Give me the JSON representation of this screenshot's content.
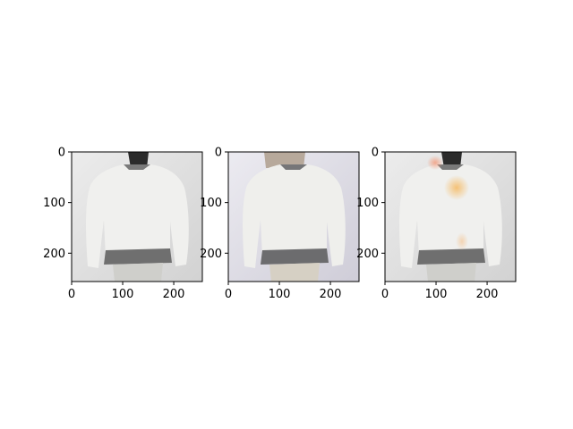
{
  "figure": {
    "background": "#ffffff",
    "panel_count": 3
  },
  "chart_data": [
    {
      "type": "image",
      "title": "",
      "xlabel": "",
      "ylabel": "",
      "image_extent": [
        0,
        256,
        256,
        0
      ],
      "xticks": [
        0,
        100,
        200
      ],
      "yticks": [
        0,
        100,
        200
      ],
      "xtick_labels": [
        "0",
        "100",
        "200"
      ],
      "ytick_labels": [
        "0",
        "100",
        "200"
      ],
      "style": {
        "bg": "#e4e4e4",
        "tint": "#dcdcdc",
        "overlay": false
      }
    },
    {
      "type": "image",
      "title": "",
      "xlabel": "",
      "ylabel": "",
      "image_extent": [
        0,
        256,
        256,
        0
      ],
      "xticks": [
        0,
        100,
        200
      ],
      "yticks": [
        0,
        100,
        200
      ],
      "xtick_labels": [
        "0",
        "100",
        "200"
      ],
      "ytick_labels": [
        "0",
        "100",
        "200"
      ],
      "style": {
        "bg": "#e3e2ea",
        "tint": "#d9d3c6",
        "overlay": false
      }
    },
    {
      "type": "image",
      "title": "",
      "xlabel": "",
      "ylabel": "",
      "image_extent": [
        0,
        256,
        256,
        0
      ],
      "xticks": [
        0,
        100,
        200
      ],
      "yticks": [
        0,
        100,
        200
      ],
      "xtick_labels": [
        "0",
        "100",
        "200"
      ],
      "ytick_labels": [
        "0",
        "100",
        "200"
      ],
      "style": {
        "bg": "#e4e4e4",
        "tint": "#dcdcdc",
        "overlay": true,
        "overlay_color": "#f2a64a"
      }
    }
  ]
}
